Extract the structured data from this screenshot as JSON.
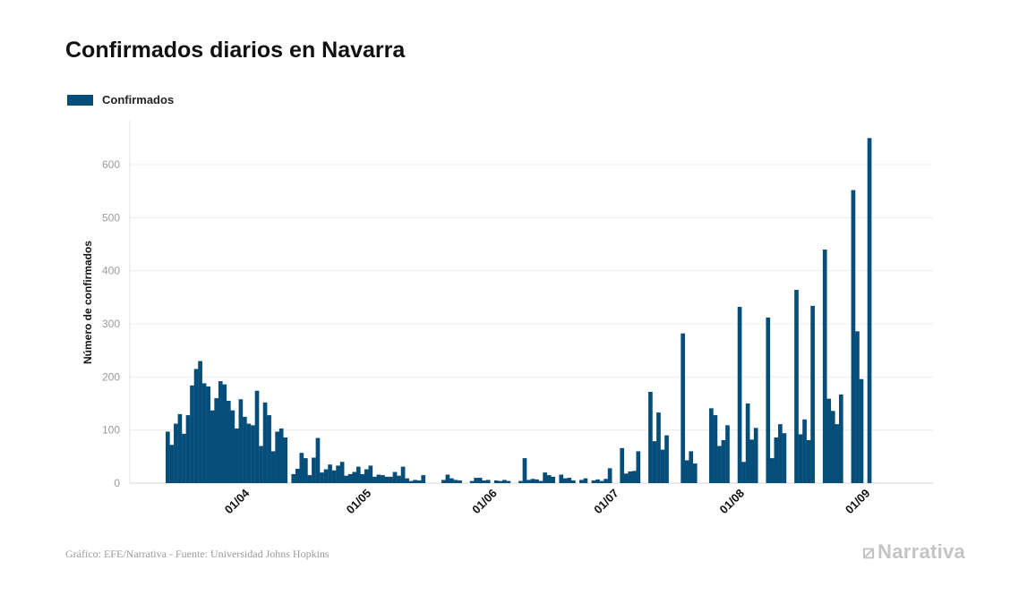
{
  "title": "Confirmados diarios en Navarra",
  "legend": {
    "label": "Confirmados",
    "color": "#064e7a"
  },
  "footer": {
    "source": "Gráfico: EFE/Narrativa - Fuente: Universidad Johns Hopkins",
    "brand": "Narrativa"
  },
  "chart_data": {
    "type": "bar",
    "title": "Confirmados diarios en Navarra",
    "ylabel": "Número de confirmados",
    "xlabel": "",
    "ylim": [
      0,
      680
    ],
    "yticks": [
      0,
      100,
      200,
      300,
      400,
      500,
      600
    ],
    "x_start": "2020-03-13",
    "x_ticks": [
      {
        "label": "01/04",
        "day_index": 19
      },
      {
        "label": "01/05",
        "day_index": 49
      },
      {
        "label": "01/06",
        "day_index": 80
      },
      {
        "label": "01/07",
        "day_index": 110
      },
      {
        "label": "01/08",
        "day_index": 141
      },
      {
        "label": "01/09",
        "day_index": 172
      }
    ],
    "grid": true,
    "legend_position": "top-left",
    "series": [
      {
        "name": "Confirmados",
        "color": "#064e7a",
        "values": [
          97,
          72,
          112,
          130,
          93,
          128,
          184,
          215,
          230,
          188,
          182,
          137,
          160,
          192,
          186,
          155,
          137,
          103,
          158,
          125,
          112,
          109,
          174,
          70,
          152,
          128,
          60,
          97,
          103,
          86,
          0,
          17,
          27,
          57,
          47,
          15,
          48,
          85,
          20,
          26,
          35,
          24,
          33,
          40,
          14,
          17,
          21,
          31,
          17,
          26,
          33,
          12,
          16,
          15,
          12,
          12,
          21,
          14,
          31,
          9,
          4,
          6,
          5,
          15,
          0,
          0,
          0,
          0,
          6,
          16,
          9,
          6,
          5,
          0,
          0,
          4,
          10,
          10,
          5,
          6,
          0,
          5,
          4,
          6,
          4,
          0,
          0,
          4,
          47,
          6,
          8,
          7,
          4,
          20,
          15,
          12,
          0,
          16,
          9,
          10,
          5,
          0,
          6,
          9,
          0,
          5,
          7,
          4,
          8,
          28,
          0,
          0,
          66,
          18,
          22,
          23,
          60,
          0,
          0,
          172,
          79,
          133,
          63,
          90,
          0,
          0,
          0,
          282,
          43,
          60,
          37,
          0,
          0,
          0,
          141,
          128,
          70,
          81,
          109,
          0,
          0,
          332,
          40,
          150,
          82,
          104,
          0,
          0,
          312,
          47,
          86,
          111,
          94,
          0,
          0,
          364,
          92,
          120,
          81,
          334,
          0,
          0,
          440,
          159,
          136,
          111,
          167,
          0,
          0,
          552,
          286,
          196,
          0,
          650
        ]
      }
    ]
  }
}
